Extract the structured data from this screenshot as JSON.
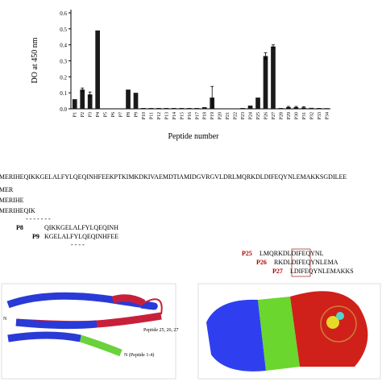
{
  "chart_data": {
    "type": "bar",
    "y_label": "DO at 450 nm",
    "x_label": "Peptide number",
    "categories": [
      "P1",
      "P2",
      "P3",
      "P4",
      "P5",
      "P6",
      "P7",
      "P8",
      "P9",
      "P10",
      "P11",
      "P12",
      "P13",
      "P14",
      "P15",
      "P16",
      "P17",
      "P18",
      "P19",
      "P20",
      "P21",
      "P22",
      "P23",
      "P24",
      "P25",
      "P26",
      "P27",
      "P28",
      "P29",
      "P30",
      "P31",
      "P32",
      "P33",
      "P34"
    ],
    "values": [
      0.06,
      0.12,
      0.09,
      0.49,
      0,
      0,
      0,
      0.12,
      0.1,
      0.005,
      0.005,
      0.005,
      0.005,
      0.005,
      0.005,
      0.005,
      0.005,
      0.01,
      0.07,
      0,
      0,
      0,
      0.005,
      0.02,
      0.07,
      0.33,
      0.39,
      0.005,
      0.01,
      0.01,
      0.008,
      0.006,
      0.005,
      0.004
    ],
    "errors": [
      0,
      0.01,
      0.015,
      0,
      0,
      0,
      0,
      0,
      0,
      0,
      0,
      0,
      0,
      0,
      0,
      0,
      0,
      0,
      0.07,
      0,
      0,
      0,
      0,
      0,
      0,
      0.02,
      0.01,
      0,
      0.005,
      0.005,
      0.005,
      0,
      0,
      0
    ],
    "color": "#1a1a1a",
    "ylim": [
      0,
      0.62
    ],
    "yticks": [
      {
        "value": 0,
        "label": "0.0"
      },
      {
        "value": 0.1,
        "label": "0.1"
      },
      {
        "value": 0.2,
        "label": "0.2"
      },
      {
        "value": 0.3,
        "label": "0.3"
      },
      {
        "value": 0.4,
        "label": "0.4"
      },
      {
        "value": 0.5,
        "label": "0.5"
      },
      {
        "value": 0.6,
        "label": "0.6"
      }
    ]
  },
  "sequence_panel": {
    "full_sequence": "LMERIHEQIKKGELALFYLQEQINHFEEKPTKIMKDKIVAEMDTIAMIDGVRGVLDRLMQRKDLDIFEQYNLEMAKKSGDILEE",
    "left_lines": [
      "LMER",
      "LMERIHE",
      "LMERIHEQIK"
    ],
    "dash1": "- - - - - - -",
    "p8_label": "P8",
    "p8_seq": "QIKKGELALFYLQEQINH",
    "p9_label": "P9",
    "p9_seq": "KGELALFYLQEQINHFEE",
    "dash2": "- - - -",
    "right": [
      {
        "label": "P25",
        "seq": "LMQRKDLDIFEQYNL"
      },
      {
        "label": "P26",
        "seq": "RKDLDIFEQYNLEMA"
      },
      {
        "label": "P27",
        "seq": "LDIFEQYNLEMAKKS"
      }
    ]
  },
  "structure_panel": {
    "n_label": "N",
    "peptide_label": "Peptide 25, 26, 27",
    "n_peptide_label": "N (Peptide 1-4)"
  }
}
